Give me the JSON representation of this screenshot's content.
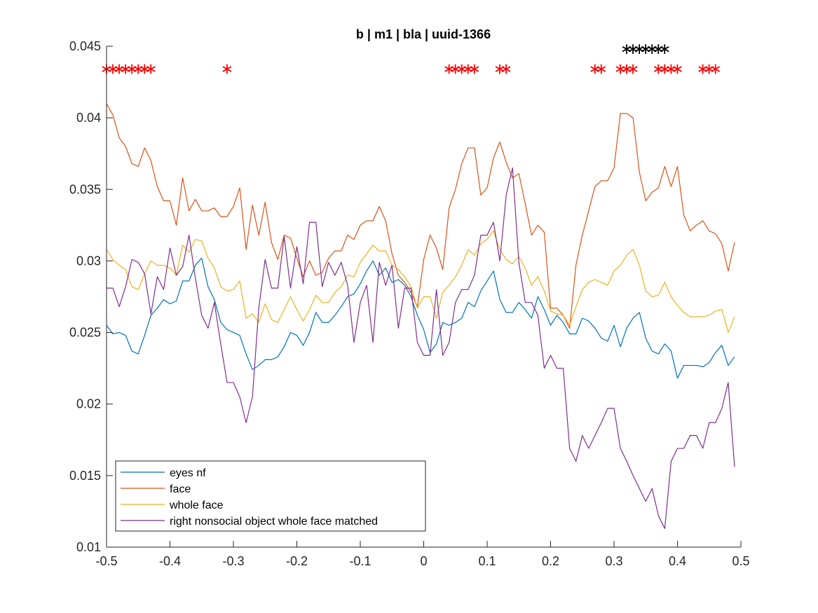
{
  "chart_data": {
    "type": "line",
    "title": "b | m1 | bla | uuid-1366",
    "xlabel": "",
    "ylabel": "",
    "xlim": [
      -0.5,
      0.5
    ],
    "ylim": [
      0.01,
      0.045
    ],
    "x_ticks": [
      -0.5,
      -0.4,
      -0.3,
      -0.2,
      -0.1,
      0,
      0.1,
      0.2,
      0.3,
      0.4,
      0.5
    ],
    "x_tick_labels": [
      "-0.5",
      "-0.4",
      "-0.3",
      "-0.2",
      "-0.1",
      "0",
      "0.1",
      "0.2",
      "0.3",
      "0.4",
      "0.5"
    ],
    "y_ticks": [
      0.01,
      0.015,
      0.02,
      0.025,
      0.03,
      0.035,
      0.04,
      0.045
    ],
    "y_tick_labels": [
      "0.01",
      "0.015",
      "0.02",
      "0.025",
      "0.03",
      "0.035",
      "0.04",
      "0.045"
    ],
    "grid": false,
    "legend_position": "bottom-left",
    "x": [
      -0.5,
      -0.49,
      -0.48,
      -0.47,
      -0.46,
      -0.45,
      -0.44,
      -0.43,
      -0.42,
      -0.41,
      -0.4,
      -0.39,
      -0.38,
      -0.37,
      -0.36,
      -0.35,
      -0.34,
      -0.33,
      -0.32,
      -0.31,
      -0.3,
      -0.29,
      -0.28,
      -0.27,
      -0.26,
      -0.25,
      -0.24,
      -0.23,
      -0.22,
      -0.21,
      -0.2,
      -0.19,
      -0.18,
      -0.17,
      -0.16,
      -0.15,
      -0.14,
      -0.13,
      -0.12,
      -0.11,
      -0.1,
      -0.09,
      -0.08,
      -0.07,
      -0.06,
      -0.05,
      -0.04,
      -0.03,
      -0.02,
      -0.01,
      0,
      0.01,
      0.02,
      0.03,
      0.04,
      0.05,
      0.06,
      0.07,
      0.08,
      0.09,
      0.1,
      0.11,
      0.12,
      0.13,
      0.14,
      0.15,
      0.16,
      0.17,
      0.18,
      0.19,
      0.2,
      0.21,
      0.22,
      0.23,
      0.24,
      0.25,
      0.26,
      0.27,
      0.28,
      0.29,
      0.3,
      0.31,
      0.32,
      0.33,
      0.34,
      0.35,
      0.36,
      0.37,
      0.38,
      0.39,
      0.4,
      0.41,
      0.42,
      0.43,
      0.44,
      0.45,
      0.46,
      0.47,
      0.48,
      0.49
    ],
    "series": [
      {
        "name": "eyes nf",
        "color": "#0072BD",
        "values": [
          0.0255,
          0.0249,
          0.025,
          0.0248,
          0.0237,
          0.0235,
          0.0248,
          0.0262,
          0.0267,
          0.0273,
          0.027,
          0.0272,
          0.0286,
          0.0286,
          0.0297,
          0.0302,
          0.0282,
          0.0273,
          0.0257,
          0.0252,
          0.025,
          0.0248,
          0.0235,
          0.0224,
          0.0227,
          0.0231,
          0.0231,
          0.0233,
          0.024,
          0.025,
          0.0248,
          0.0241,
          0.025,
          0.0264,
          0.0257,
          0.0257,
          0.0262,
          0.0268,
          0.0275,
          0.0277,
          0.0284,
          0.0293,
          0.03,
          0.029,
          0.0295,
          0.0285,
          0.0287,
          0.0283,
          0.0275,
          0.0262,
          0.0252,
          0.0236,
          0.0242,
          0.0257,
          0.0255,
          0.0257,
          0.026,
          0.0271,
          0.0268,
          0.0279,
          0.0286,
          0.0293,
          0.0273,
          0.0264,
          0.0264,
          0.0271,
          0.0266,
          0.026,
          0.0275,
          0.0266,
          0.0255,
          0.0262,
          0.0257,
          0.0249,
          0.0249,
          0.026,
          0.0258,
          0.0253,
          0.0246,
          0.0244,
          0.0255,
          0.024,
          0.0253,
          0.026,
          0.0264,
          0.0246,
          0.0237,
          0.0235,
          0.0242,
          0.0237,
          0.0218,
          0.0227,
          0.0227,
          0.0227,
          0.0226,
          0.0229,
          0.0236,
          0.0241,
          0.0227,
          0.0233
        ]
      },
      {
        "name": "face",
        "color": "#D95319",
        "values": [
          0.041,
          0.0402,
          0.0386,
          0.038,
          0.0368,
          0.0366,
          0.0379,
          0.037,
          0.0352,
          0.0342,
          0.0342,
          0.0325,
          0.0358,
          0.0335,
          0.0343,
          0.0335,
          0.0335,
          0.0337,
          0.0331,
          0.0331,
          0.0338,
          0.0351,
          0.0308,
          0.0339,
          0.0318,
          0.0341,
          0.0313,
          0.0301,
          0.0318,
          0.0316,
          0.0302,
          0.0289,
          0.03,
          0.029,
          0.0292,
          0.0302,
          0.0307,
          0.0307,
          0.0318,
          0.0315,
          0.0325,
          0.0328,
          0.0328,
          0.0338,
          0.0328,
          0.0305,
          0.029,
          0.0285,
          0.0278,
          0.0268,
          0.0301,
          0.0318,
          0.0309,
          0.0294,
          0.0337,
          0.035,
          0.0368,
          0.0379,
          0.0379,
          0.0346,
          0.0351,
          0.0372,
          0.0383,
          0.0369,
          0.0358,
          0.0361,
          0.034,
          0.0318,
          0.0325,
          0.032,
          0.0267,
          0.0267,
          0.0262,
          0.0253,
          0.0297,
          0.0318,
          0.0335,
          0.0352,
          0.0356,
          0.0356,
          0.0365,
          0.0403,
          0.0403,
          0.04,
          0.0362,
          0.0342,
          0.0348,
          0.0351,
          0.0366,
          0.0352,
          0.0366,
          0.0332,
          0.0321,
          0.0325,
          0.0328,
          0.0321,
          0.0319,
          0.0312,
          0.0293,
          0.0313
        ]
      },
      {
        "name": "whole face",
        "color": "#EDB120",
        "values": [
          0.0308,
          0.0301,
          0.0297,
          0.0294,
          0.0282,
          0.028,
          0.0291,
          0.03,
          0.0297,
          0.0297,
          0.0295,
          0.029,
          0.0311,
          0.0306,
          0.0315,
          0.0314,
          0.0302,
          0.0295,
          0.0282,
          0.0279,
          0.028,
          0.0286,
          0.026,
          0.0263,
          0.0257,
          0.027,
          0.0259,
          0.0257,
          0.0266,
          0.0275,
          0.0266,
          0.0258,
          0.0266,
          0.0276,
          0.0271,
          0.0271,
          0.0278,
          0.0282,
          0.029,
          0.0289,
          0.0299,
          0.0305,
          0.0311,
          0.0307,
          0.0307,
          0.0297,
          0.0294,
          0.0289,
          0.0282,
          0.0267,
          0.0275,
          0.0275,
          0.026,
          0.0278,
          0.0283,
          0.0289,
          0.0297,
          0.0308,
          0.0304,
          0.0312,
          0.0315,
          0.0321,
          0.0308,
          0.0301,
          0.0298,
          0.0303,
          0.0295,
          0.0283,
          0.0289,
          0.0279,
          0.0265,
          0.0263,
          0.0262,
          0.0255,
          0.0268,
          0.028,
          0.0285,
          0.0287,
          0.0285,
          0.0283,
          0.0293,
          0.0297,
          0.0304,
          0.0308,
          0.0297,
          0.0279,
          0.0275,
          0.0276,
          0.0285,
          0.0275,
          0.0269,
          0.0264,
          0.0261,
          0.0261,
          0.0261,
          0.0262,
          0.0265,
          0.0266,
          0.025,
          0.0261
        ]
      },
      {
        "name": "right nonsocial object whole face matched",
        "color": "#7E2F8E",
        "values": [
          0.0281,
          0.0281,
          0.0268,
          0.0282,
          0.0301,
          0.0299,
          0.0291,
          0.0263,
          0.0289,
          0.028,
          0.0309,
          0.029,
          0.0296,
          0.0318,
          0.0288,
          0.0262,
          0.0253,
          0.0271,
          0.0242,
          0.0215,
          0.0215,
          0.0205,
          0.0187,
          0.0205,
          0.0267,
          0.0301,
          0.0281,
          0.0281,
          0.0317,
          0.0281,
          0.031,
          0.0284,
          0.0327,
          0.0327,
          0.0282,
          0.0299,
          0.029,
          0.0299,
          0.0283,
          0.0243,
          0.0271,
          0.0283,
          0.0243,
          0.0299,
          0.0283,
          0.0297,
          0.0253,
          0.0281,
          0.0281,
          0.0243,
          0.0234,
          0.0234,
          0.028,
          0.0234,
          0.0243,
          0.0271,
          0.028,
          0.028,
          0.029,
          0.0318,
          0.0318,
          0.0327,
          0.03,
          0.0346,
          0.0365,
          0.0299,
          0.0271,
          0.0271,
          0.0262,
          0.0225,
          0.0234,
          0.0225,
          0.0225,
          0.0169,
          0.016,
          0.0178,
          0.0169,
          0.0178,
          0.0187,
          0.0197,
          0.0197,
          0.0169,
          0.016,
          0.015,
          0.0141,
          0.0132,
          0.0141,
          0.0122,
          0.0113,
          0.016,
          0.0169,
          0.0169,
          0.0178,
          0.0178,
          0.0169,
          0.0187,
          0.0187,
          0.0197,
          0.0215,
          0.0156
        ]
      }
    ],
    "significance_markers": [
      {
        "color": "#FF0000",
        "y": 0.0436,
        "x": [
          -0.5,
          -0.49,
          -0.48,
          -0.47,
          -0.46,
          -0.45,
          -0.44,
          -0.43,
          -0.31,
          0.04,
          0.05,
          0.06,
          0.07,
          0.08,
          0.12,
          0.13,
          0.27,
          0.28,
          0.31,
          0.32,
          0.33,
          0.37,
          0.38,
          0.39,
          0.4,
          0.44,
          0.45,
          0.46
        ]
      },
      {
        "color": "#000000",
        "y": 0.045,
        "x": [
          0.32,
          0.33,
          0.34,
          0.35,
          0.36,
          0.37,
          0.38
        ]
      }
    ]
  }
}
